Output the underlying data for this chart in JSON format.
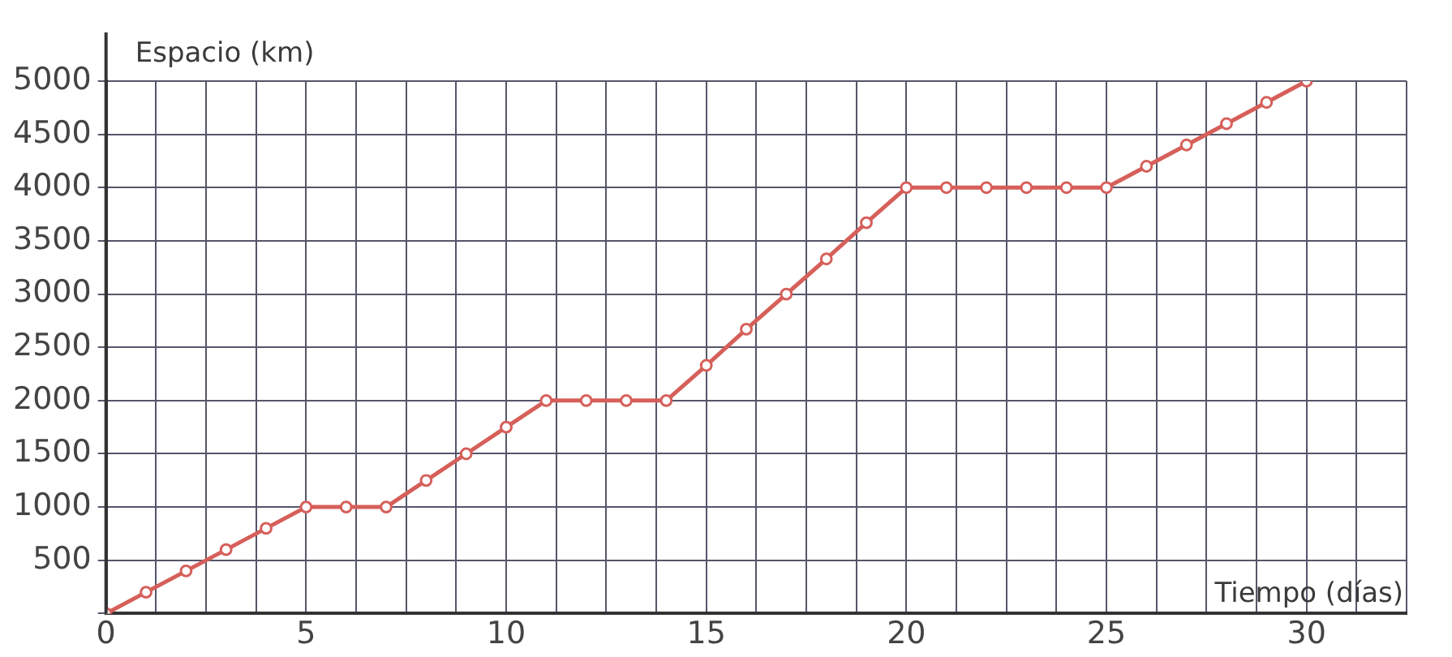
{
  "chart_data": {
    "type": "line",
    "xlabel": "Tiempo (días)",
    "ylabel": "Espacio (km)",
    "x": [
      0,
      1,
      2,
      3,
      4,
      5,
      6,
      7,
      8,
      9,
      10,
      11,
      12,
      13,
      14,
      15,
      16,
      17,
      18,
      19,
      20,
      21,
      22,
      23,
      24,
      25,
      26,
      27,
      28,
      29,
      30
    ],
    "series": [
      {
        "color": "#d65f5a",
        "values": [
          0,
          200,
          400,
          600,
          800,
          1000,
          1000,
          1000,
          1250,
          1500,
          1750,
          2000,
          2000,
          2000,
          2000,
          2330,
          2670,
          3000,
          3330,
          3670,
          4000,
          4000,
          4000,
          4000,
          4000,
          4000,
          4200,
          4400,
          4600,
          4800,
          5000
        ]
      }
    ],
    "xlim": [
      0,
      32.5
    ],
    "xticks": [
      0,
      {
        "value": 1.25,
        "label": null
      },
      {
        "value": 2.5,
        "label": null
      },
      {
        "value": 3.75,
        "label": null
      },
      5,
      {
        "value": 6.25,
        "label": null
      },
      {
        "value": 7.5,
        "label": null
      },
      {
        "value": 8.75,
        "label": null
      },
      10,
      {
        "value": 11.25,
        "label": null
      },
      {
        "value": 12.5,
        "label": null
      },
      {
        "value": 13.75,
        "label": null
      },
      15,
      {
        "value": 16.25,
        "label": null
      },
      {
        "value": 17.5,
        "label": null
      },
      {
        "value": 18.75,
        "label": null
      },
      20,
      {
        "value": 21.25,
        "label": null
      },
      {
        "value": 22.5,
        "label": null
      },
      {
        "value": 23.75,
        "label": null
      },
      25,
      {
        "value": 26.25,
        "label": null
      },
      {
        "value": 27.5,
        "label": null
      },
      {
        "value": 28.75,
        "label": null
      },
      30,
      {
        "value": 31.25,
        "label": null
      },
      {
        "value": 32.5,
        "label": null
      }
    ],
    "ylim": [
      0,
      5000
    ],
    "yticks": [
      {
        "value": 0,
        "label": null
      },
      500,
      1000,
      1500,
      2000,
      2500,
      3000,
      3500,
      4000,
      4500,
      5000
    ],
    "grid": true,
    "legend": false,
    "marker": "circle",
    "line_style": "solid"
  }
}
